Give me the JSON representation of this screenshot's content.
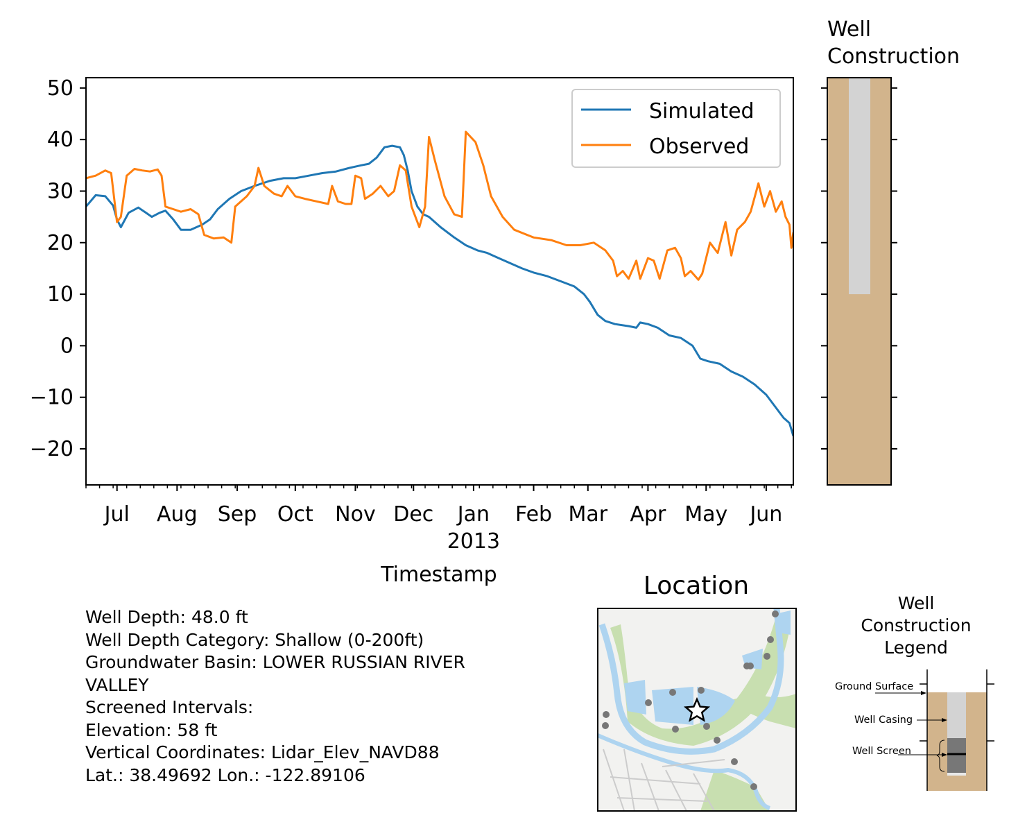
{
  "chart_data": [
    {
      "type": "line",
      "xlabel": "Timestamp",
      "ylabel": "",
      "ylim": [
        -27,
        52
      ],
      "yticks": [
        50,
        40,
        30,
        20,
        10,
        0,
        -10,
        -20
      ],
      "ytick_labels": [
        "50",
        "40",
        "30",
        "20",
        "10",
        "0",
        "−10",
        "−20"
      ],
      "x_range": [
        "2012-06-15",
        "2013-06-15"
      ],
      "x_ticks": [
        "2012-07-01",
        "2012-08-01",
        "2012-09-01",
        "2012-10-01",
        "2012-11-01",
        "2012-12-01",
        "2013-01-01",
        "2013-02-01",
        "2013-03-01",
        "2013-04-01",
        "2013-05-01",
        "2013-06-01"
      ],
      "x_tick_labels": [
        "Jul",
        "Aug",
        "Sep",
        "Oct",
        "Nov",
        "Dec",
        "Jan",
        "Feb",
        "Mar",
        "Apr",
        "May",
        "Jun"
      ],
      "year_label": "2013",
      "legend": "top-right",
      "grid": false,
      "series": [
        {
          "name": "Simulated",
          "color": "#1f77b4",
          "points": [
            [
              "2012-06-15",
              27.0
            ],
            [
              "2012-06-20",
              29.2
            ],
            [
              "2012-06-25",
              29.0
            ],
            [
              "2012-06-29",
              27.2
            ],
            [
              "2012-07-01",
              24.5
            ],
            [
              "2012-07-03",
              23.0
            ],
            [
              "2012-07-07",
              25.8
            ],
            [
              "2012-07-12",
              26.8
            ],
            [
              "2012-07-16",
              25.8
            ],
            [
              "2012-07-19",
              25.0
            ],
            [
              "2012-07-23",
              25.8
            ],
            [
              "2012-07-26",
              26.2
            ],
            [
              "2012-07-30",
              24.5
            ],
            [
              "2012-08-03",
              22.5
            ],
            [
              "2012-08-08",
              22.5
            ],
            [
              "2012-08-14",
              23.5
            ],
            [
              "2012-08-18",
              24.5
            ],
            [
              "2012-08-22",
              26.5
            ],
            [
              "2012-08-28",
              28.5
            ],
            [
              "2012-09-03",
              30.0
            ],
            [
              "2012-09-10",
              31.0
            ],
            [
              "2012-09-18",
              32.0
            ],
            [
              "2012-09-25",
              32.5
            ],
            [
              "2012-10-01",
              32.5
            ],
            [
              "2012-10-08",
              33.0
            ],
            [
              "2012-10-15",
              33.5
            ],
            [
              "2012-10-22",
              33.8
            ],
            [
              "2012-10-29",
              34.5
            ],
            [
              "2012-11-04",
              35.0
            ],
            [
              "2012-11-08",
              35.3
            ],
            [
              "2012-11-12",
              36.5
            ],
            [
              "2012-11-16",
              38.5
            ],
            [
              "2012-11-20",
              38.8
            ],
            [
              "2012-11-24",
              38.5
            ],
            [
              "2012-11-26",
              37.0
            ],
            [
              "2012-11-28",
              34.0
            ],
            [
              "2012-11-30",
              30.0
            ],
            [
              "2012-12-03",
              27.0
            ],
            [
              "2012-12-06",
              25.5
            ],
            [
              "2012-12-09",
              25.0
            ],
            [
              "2012-12-15",
              23.0
            ],
            [
              "2012-12-22",
              21.0
            ],
            [
              "2012-12-28",
              19.5
            ],
            [
              "2013-01-03",
              18.5
            ],
            [
              "2013-01-08",
              18.0
            ],
            [
              "2013-01-14",
              17.0
            ],
            [
              "2013-01-20",
              16.0
            ],
            [
              "2013-01-26",
              15.0
            ],
            [
              "2013-02-01",
              14.2
            ],
            [
              "2013-02-08",
              13.5
            ],
            [
              "2013-02-15",
              12.5
            ],
            [
              "2013-02-22",
              11.5
            ],
            [
              "2013-02-27",
              10.0
            ],
            [
              "2013-03-02",
              8.5
            ],
            [
              "2013-03-06",
              6.0
            ],
            [
              "2013-03-10",
              4.8
            ],
            [
              "2013-03-15",
              4.2
            ],
            [
              "2013-03-22",
              3.8
            ],
            [
              "2013-03-26",
              3.5
            ],
            [
              "2013-03-28",
              4.5
            ],
            [
              "2013-04-01",
              4.2
            ],
            [
              "2013-04-06",
              3.5
            ],
            [
              "2013-04-12",
              2.0
            ],
            [
              "2013-04-18",
              1.5
            ],
            [
              "2013-04-24",
              0.0
            ],
            [
              "2013-04-28",
              -2.5
            ],
            [
              "2013-05-02",
              -3.0
            ],
            [
              "2013-05-08",
              -3.5
            ],
            [
              "2013-05-14",
              -5.0
            ],
            [
              "2013-05-20",
              -6.0
            ],
            [
              "2013-05-26",
              -7.5
            ],
            [
              "2013-06-01",
              -9.5
            ],
            [
              "2013-06-06",
              -12.0
            ],
            [
              "2013-06-10",
              -14.0
            ],
            [
              "2013-06-13",
              -15.0
            ],
            [
              "2013-06-15",
              -17.5
            ]
          ]
        },
        {
          "name": "Observed",
          "color": "#ff7f0e",
          "points": [
            [
              "2012-06-15",
              32.5
            ],
            [
              "2012-06-20",
              33.0
            ],
            [
              "2012-06-25",
              34.0
            ],
            [
              "2012-06-28",
              33.5
            ],
            [
              "2012-07-01",
              24.0
            ],
            [
              "2012-07-03",
              25.0
            ],
            [
              "2012-07-06",
              33.0
            ],
            [
              "2012-07-10",
              34.3
            ],
            [
              "2012-07-14",
              34.0
            ],
            [
              "2012-07-18",
              33.8
            ],
            [
              "2012-07-22",
              34.2
            ],
            [
              "2012-07-24",
              33.0
            ],
            [
              "2012-07-26",
              27.0
            ],
            [
              "2012-07-30",
              26.5
            ],
            [
              "2012-08-03",
              26.0
            ],
            [
              "2012-08-08",
              26.5
            ],
            [
              "2012-08-12",
              25.5
            ],
            [
              "2012-08-15",
              21.5
            ],
            [
              "2012-08-20",
              20.8
            ],
            [
              "2012-08-25",
              21.0
            ],
            [
              "2012-08-29",
              20.0
            ],
            [
              "2012-08-31",
              27.0
            ],
            [
              "2012-09-06",
              29.0
            ],
            [
              "2012-09-10",
              31.0
            ],
            [
              "2012-09-12",
              34.5
            ],
            [
              "2012-09-15",
              31.0
            ],
            [
              "2012-09-20",
              29.5
            ],
            [
              "2012-09-24",
              29.0
            ],
            [
              "2012-09-27",
              31.0
            ],
            [
              "2012-10-01",
              29.0
            ],
            [
              "2012-10-06",
              28.5
            ],
            [
              "2012-10-12",
              28.0
            ],
            [
              "2012-10-18",
              27.5
            ],
            [
              "2012-10-20",
              31.0
            ],
            [
              "2012-10-23",
              28.0
            ],
            [
              "2012-10-27",
              27.5
            ],
            [
              "2012-10-30",
              27.5
            ],
            [
              "2012-11-01",
              33.0
            ],
            [
              "2012-11-04",
              32.5
            ],
            [
              "2012-11-06",
              28.5
            ],
            [
              "2012-11-10",
              29.5
            ],
            [
              "2012-11-14",
              31.0
            ],
            [
              "2012-11-18",
              29.0
            ],
            [
              "2012-11-21",
              30.0
            ],
            [
              "2012-11-24",
              35.0
            ],
            [
              "2012-11-27",
              34.0
            ],
            [
              "2012-11-30",
              27.0
            ],
            [
              "2012-12-04",
              23.0
            ],
            [
              "2012-12-07",
              27.0
            ],
            [
              "2012-12-09",
              40.5
            ],
            [
              "2012-12-12",
              36.0
            ],
            [
              "2012-12-17",
              29.0
            ],
            [
              "2012-12-22",
              25.5
            ],
            [
              "2012-12-26",
              25.0
            ],
            [
              "2012-12-28",
              41.5
            ],
            [
              "2013-01-02",
              39.5
            ],
            [
              "2013-01-06",
              35.0
            ],
            [
              "2013-01-10",
              29.0
            ],
            [
              "2013-01-16",
              25.0
            ],
            [
              "2013-01-22",
              22.5
            ],
            [
              "2013-02-01",
              21.0
            ],
            [
              "2013-02-10",
              20.5
            ],
            [
              "2013-02-18",
              19.5
            ],
            [
              "2013-02-25",
              19.5
            ],
            [
              "2013-03-04",
              20.0
            ],
            [
              "2013-03-10",
              18.5
            ],
            [
              "2013-03-14",
              16.5
            ],
            [
              "2013-03-16",
              13.5
            ],
            [
              "2013-03-19",
              14.5
            ],
            [
              "2013-03-22",
              13.0
            ],
            [
              "2013-03-26",
              16.5
            ],
            [
              "2013-03-28",
              13.0
            ],
            [
              "2013-04-01",
              17.0
            ],
            [
              "2013-04-04",
              16.5
            ],
            [
              "2013-04-07",
              13.0
            ],
            [
              "2013-04-11",
              18.5
            ],
            [
              "2013-04-15",
              19.0
            ],
            [
              "2013-04-18",
              17.0
            ],
            [
              "2013-04-20",
              13.5
            ],
            [
              "2013-04-23",
              14.5
            ],
            [
              "2013-04-27",
              12.8
            ],
            [
              "2013-04-29",
              14.0
            ],
            [
              "2013-05-03",
              20.0
            ],
            [
              "2013-05-07",
              18.0
            ],
            [
              "2013-05-11",
              24.0
            ],
            [
              "2013-05-14",
              17.5
            ],
            [
              "2013-05-17",
              22.5
            ],
            [
              "2013-05-21",
              24.0
            ],
            [
              "2013-05-24",
              26.0
            ],
            [
              "2013-05-28",
              31.5
            ],
            [
              "2013-05-31",
              27.0
            ],
            [
              "2013-06-03",
              30.0
            ],
            [
              "2013-06-06",
              26.0
            ],
            [
              "2013-06-09",
              28.0
            ],
            [
              "2013-06-11",
              25.0
            ],
            [
              "2013-06-13",
              23.5
            ],
            [
              "2013-06-14",
              19.0
            ],
            [
              "2013-06-15",
              22.0
            ]
          ]
        }
      ]
    },
    {
      "type": "other",
      "title": "Well\nConstruction",
      "title_lines": [
        "Well",
        "Construction"
      ],
      "ylim": [
        -27,
        52
      ],
      "ground_surface": 52,
      "casing_bottom": 10,
      "colors": {
        "soil": "#d2b48c",
        "casing": "#d3d3d3"
      }
    }
  ],
  "location": {
    "title": "Location",
    "marker": "star",
    "map_colors": {
      "land": "#f2f2f0",
      "water": "#aed4f0",
      "vegetation": "#c8dfb0",
      "roads": "#cccccc",
      "points": "#777777"
    }
  },
  "legend_box": {
    "title_lines": [
      "Well",
      "Construction",
      "Legend"
    ],
    "labels": {
      "ground": "Ground Surface",
      "casing": "Well Casing",
      "screen": "Well Screen"
    },
    "colors": {
      "soil": "#d2b48c",
      "casing": "#d3d3d3",
      "screen": "#777777"
    }
  },
  "info": {
    "lines": [
      "Well Depth: 48.0 ft",
      "Well Depth Category: Shallow (0-200ft)",
      "Groundwater Basin: LOWER RUSSIAN RIVER",
      "VALLEY",
      "Screened Intervals:",
      "Elevation: 58 ft",
      "Vertical Coordinates: Lidar_Elev_NAVD88",
      "Lat.: 38.49692 Lon.: -122.89106"
    ]
  }
}
